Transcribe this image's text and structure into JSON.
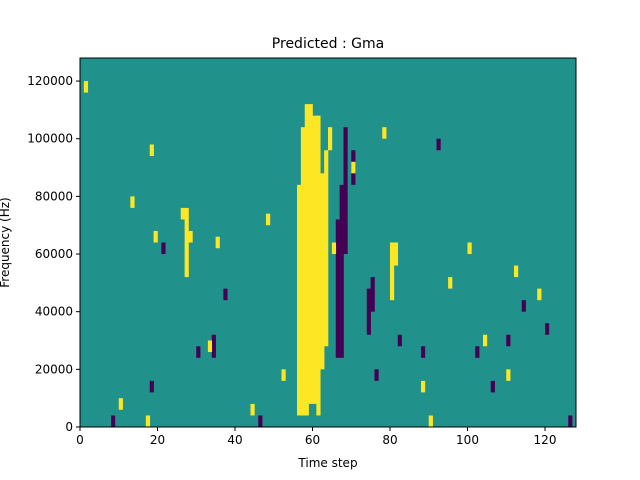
{
  "chart_data": {
    "type": "heatmap",
    "title": "Predicted : Gma",
    "xlabel": "Time step",
    "ylabel": "Frequency (Hz)",
    "xlim": [
      0,
      128
    ],
    "ylim": [
      0,
      128000
    ],
    "x_ticks": [
      0,
      20,
      40,
      60,
      80,
      100,
      120
    ],
    "y_ticks": [
      0,
      20000,
      40000,
      60000,
      80000,
      100000,
      120000
    ],
    "x_tick_labels": [
      "0",
      "20",
      "40",
      "60",
      "80",
      "100",
      "120"
    ],
    "y_tick_labels": [
      "0",
      "20000",
      "40000",
      "60000",
      "80000",
      "100000",
      "120000"
    ],
    "grid": false,
    "colormap": "viridis",
    "colors": {
      "background": "#21918c",
      "high": "#fde725",
      "low": "#440154"
    },
    "time_steps": 128,
    "frequency_bins": 32,
    "bin_height_hz": 4000,
    "high_segments": [
      [
        1,
        116000,
        120000
      ],
      [
        10,
        6000,
        10000
      ],
      [
        13,
        76000,
        80000
      ],
      [
        17,
        0,
        4000
      ],
      [
        18,
        94000,
        98000
      ],
      [
        19,
        64000,
        68000
      ],
      [
        26,
        72000,
        76000
      ],
      [
        27,
        52000,
        76000
      ],
      [
        28,
        64000,
        68000
      ],
      [
        33,
        26000,
        30000
      ],
      [
        35,
        62000,
        66000
      ],
      [
        44,
        4000,
        8000
      ],
      [
        48,
        70000,
        74000
      ],
      [
        52,
        16000,
        20000
      ],
      [
        56,
        4000,
        84000
      ],
      [
        57,
        4000,
        104000
      ],
      [
        58,
        4000,
        112000
      ],
      [
        59,
        8000,
        112000
      ],
      [
        60,
        8000,
        108000
      ],
      [
        61,
        4000,
        108000
      ],
      [
        62,
        20000,
        88000
      ],
      [
        63,
        28000,
        96000
      ],
      [
        64,
        96000,
        104000
      ],
      [
        65,
        60000,
        64000
      ],
      [
        70,
        88000,
        92000
      ],
      [
        78,
        100000,
        104000
      ],
      [
        80,
        44000,
        64000
      ],
      [
        81,
        56000,
        64000
      ],
      [
        88,
        12000,
        16000
      ],
      [
        90,
        0,
        4000
      ],
      [
        95,
        48000,
        52000
      ],
      [
        100,
        60000,
        64000
      ],
      [
        104,
        28000,
        32000
      ],
      [
        110,
        16000,
        20000
      ],
      [
        112,
        52000,
        56000
      ],
      [
        118,
        44000,
        48000
      ]
    ],
    "low_segments": [
      [
        8,
        0,
        4000
      ],
      [
        18,
        12000,
        16000
      ],
      [
        21,
        60000,
        64000
      ],
      [
        30,
        24000,
        28000
      ],
      [
        34,
        24000,
        32000
      ],
      [
        37,
        44000,
        48000
      ],
      [
        46,
        0,
        4000
      ],
      [
        60,
        8000,
        12000
      ],
      [
        66,
        24000,
        72000
      ],
      [
        67,
        24000,
        84000
      ],
      [
        68,
        60000,
        104000
      ],
      [
        70,
        84000,
        96000
      ],
      [
        74,
        32000,
        48000
      ],
      [
        75,
        40000,
        52000
      ],
      [
        76,
        16000,
        20000
      ],
      [
        82,
        28000,
        32000
      ],
      [
        88,
        24000,
        28000
      ],
      [
        92,
        96000,
        100000
      ],
      [
        102,
        24000,
        28000
      ],
      [
        106,
        12000,
        16000
      ],
      [
        110,
        28000,
        32000
      ],
      [
        114,
        40000,
        44000
      ],
      [
        120,
        32000,
        36000
      ],
      [
        126,
        0,
        4000
      ]
    ]
  }
}
